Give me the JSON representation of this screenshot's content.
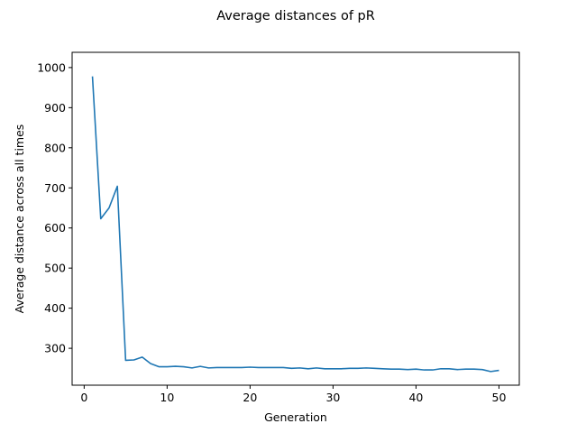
{
  "chart_data": {
    "type": "line",
    "title": "Average distances of pR",
    "xlabel": "Generation",
    "ylabel": "Average distance across all times",
    "xlim": [
      -1.45,
      52.45
    ],
    "ylim": [
      208,
      1038
    ],
    "xticks": [
      0,
      10,
      20,
      30,
      40,
      50
    ],
    "yticks": [
      300,
      400,
      500,
      600,
      700,
      800,
      900,
      1000
    ],
    "grid": false,
    "legend": "none",
    "series": [
      {
        "color": "#1f77b4",
        "x": [
          1,
          2,
          3,
          4,
          5,
          6,
          7,
          8,
          9,
          10,
          11,
          12,
          13,
          14,
          15,
          16,
          17,
          18,
          19,
          20,
          21,
          22,
          23,
          24,
          25,
          26,
          27,
          28,
          29,
          30,
          31,
          32,
          33,
          34,
          35,
          36,
          37,
          38,
          39,
          40,
          41,
          42,
          43,
          44,
          45,
          46,
          47,
          48,
          49,
          50
        ],
        "y": [
          978,
          623,
          650,
          704,
          270,
          271,
          278,
          262,
          254,
          254,
          255,
          254,
          251,
          255,
          251,
          252,
          252,
          252,
          252,
          253,
          252,
          252,
          252,
          252,
          250,
          251,
          249,
          251,
          249,
          249,
          249,
          250,
          250,
          251,
          250,
          249,
          248,
          248,
          247,
          248,
          246,
          246,
          249,
          249,
          247,
          248,
          248,
          247,
          242,
          245
        ]
      }
    ]
  }
}
